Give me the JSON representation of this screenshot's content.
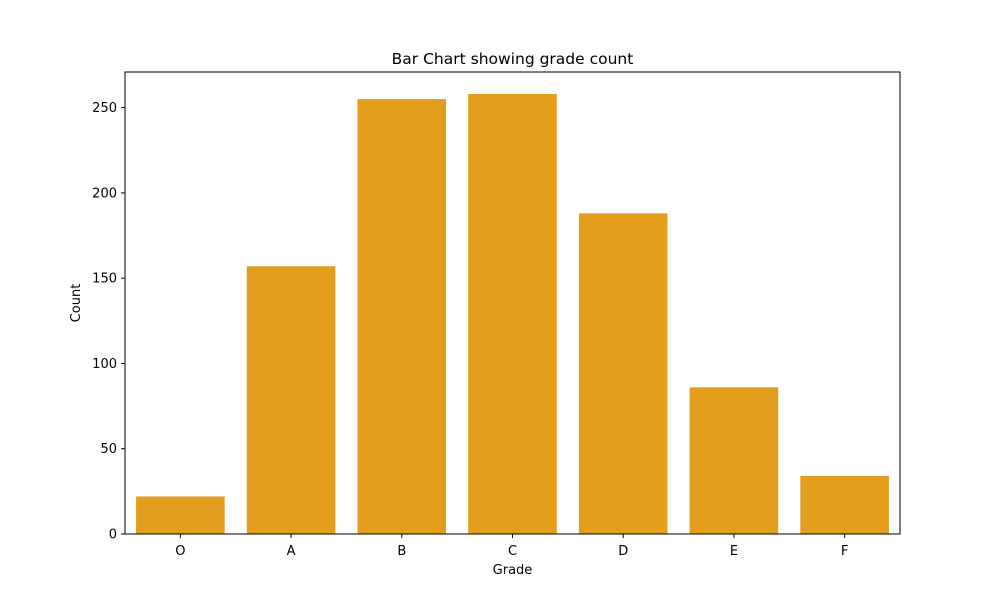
{
  "chart_data": {
    "type": "bar",
    "title": "Bar Chart showing grade count",
    "xlabel": "Grade",
    "ylabel": "Count",
    "categories": [
      "O",
      "A",
      "B",
      "C",
      "D",
      "E",
      "F"
    ],
    "values": [
      22,
      157,
      255,
      258,
      188,
      86,
      34
    ],
    "ylim": [
      0,
      270.9
    ],
    "yticks": [
      0,
      50,
      100,
      150,
      200,
      250
    ],
    "bar_color": "#E29E1C",
    "grid": false,
    "legend": "none"
  }
}
